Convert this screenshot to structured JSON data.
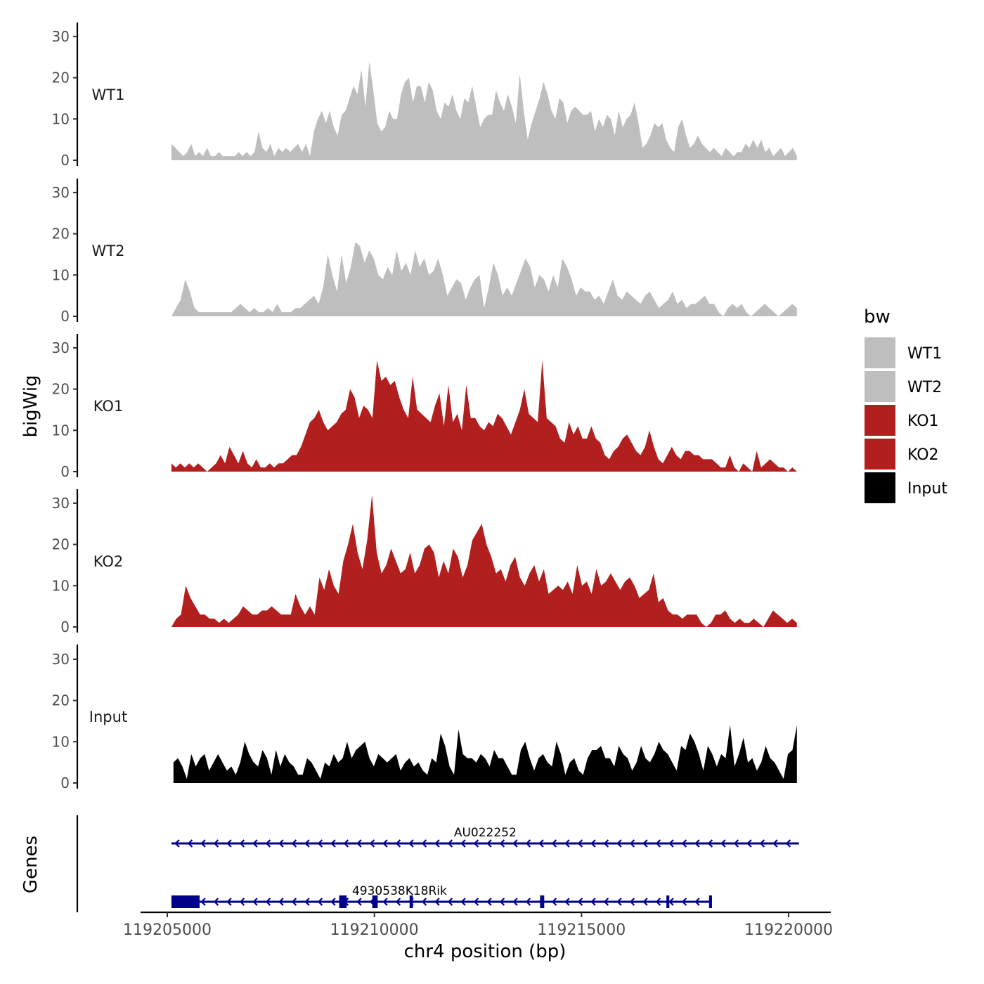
{
  "chart_data": {
    "type": "area",
    "ylabel": "bigWig",
    "xlabel": "chr4 position (bp)",
    "genes_label": "Genes",
    "legend_title": "bw",
    "xlim": [
      119205000,
      119220200
    ],
    "x_ticks": [
      119205000,
      119210000,
      119215000,
      119220000
    ],
    "x_tick_labels": [
      "119205000",
      "119210000",
      "119215000",
      "119220000"
    ],
    "ylim": [
      0,
      32
    ],
    "y_ticks": [
      0,
      10,
      20,
      30
    ],
    "tracks": [
      {
        "name": "WT1",
        "color": "#bebebe",
        "start": 119205100,
        "end": 119220200,
        "values": [
          4,
          3,
          2,
          1,
          2,
          4,
          1,
          2,
          1,
          3,
          1,
          1,
          2,
          1,
          1,
          1,
          1,
          2,
          1,
          2,
          1,
          2,
          7,
          3,
          2,
          4,
          1,
          3,
          2,
          3,
          2,
          3,
          4,
          2,
          4,
          1,
          7,
          10,
          12,
          9,
          12,
          8,
          6,
          11,
          12,
          15,
          18,
          16,
          22,
          13,
          24,
          17,
          9,
          7,
          8,
          12,
          10,
          10,
          16,
          19,
          20,
          14,
          18,
          18,
          14,
          19,
          17,
          12,
          10,
          14,
          13,
          16,
          12,
          10,
          15,
          14,
          18,
          13,
          8,
          10,
          11,
          11,
          17,
          14,
          12,
          16,
          13,
          9,
          21,
          12,
          5,
          9,
          12,
          15,
          19,
          16,
          12,
          10,
          15,
          14,
          9,
          12,
          13,
          12,
          11,
          11,
          12,
          7,
          10,
          8,
          11,
          10,
          6,
          12,
          8,
          10,
          11,
          14,
          9,
          3,
          4,
          6,
          9,
          8,
          9,
          5,
          3,
          2,
          8,
          10,
          6,
          3,
          4,
          6,
          4,
          3,
          2,
          3,
          2,
          1,
          3,
          2,
          1,
          2,
          2,
          4,
          3,
          5,
          3,
          5,
          2,
          3,
          1,
          2,
          3,
          1,
          2,
          3,
          1
        ]
      },
      {
        "name": "WT2",
        "color": "#bebebe",
        "start": 119205100,
        "end": 119220200,
        "values": [
          0,
          2,
          4,
          9,
          6,
          2,
          1,
          1,
          1,
          1,
          1,
          1,
          1,
          1,
          2,
          3,
          2,
          1,
          2,
          1,
          1,
          2,
          1,
          3,
          1,
          1,
          1,
          2,
          2,
          3,
          4,
          5,
          3,
          7,
          15,
          10,
          6,
          15,
          8,
          12,
          18,
          17,
          13,
          16,
          14,
          10,
          9,
          12,
          10,
          16,
          11,
          13,
          10,
          16,
          12,
          14,
          10,
          11,
          14,
          10,
          5,
          7,
          9,
          8,
          4,
          7,
          9,
          10,
          2,
          7,
          13,
          10,
          5,
          7,
          5,
          8,
          11,
          14,
          12,
          7,
          10,
          9,
          6,
          10,
          7,
          14,
          12,
          9,
          5,
          7,
          6,
          6,
          4,
          5,
          3,
          6,
          9,
          5,
          4,
          6,
          5,
          4,
          3,
          5,
          6,
          4,
          2,
          3,
          4,
          6,
          3,
          4,
          2,
          3,
          3,
          4,
          5,
          3,
          3,
          1,
          0,
          2,
          3,
          2,
          3,
          1,
          0,
          1,
          2,
          3,
          2,
          1,
          0,
          1,
          2,
          3,
          2
        ]
      },
      {
        "name": "KO1",
        "color": "#b21f1f",
        "start": 119205100,
        "end": 119220200,
        "values": [
          2,
          1,
          2,
          1,
          2,
          1,
          2,
          1,
          0,
          1,
          2,
          4,
          2,
          6,
          4,
          2,
          5,
          2,
          1,
          3,
          1,
          1,
          2,
          1,
          2,
          2,
          3,
          4,
          4,
          6,
          9,
          12,
          13,
          15,
          12,
          10,
          11,
          12,
          14,
          15,
          20,
          18,
          13,
          16,
          15,
          13,
          27,
          22,
          23,
          21,
          22,
          18,
          15,
          13,
          23,
          15,
          14,
          13,
          12,
          16,
          19,
          11,
          21,
          12,
          14,
          10,
          21,
          13,
          13,
          11,
          10,
          12,
          11,
          14,
          13,
          11,
          9,
          12,
          15,
          20,
          14,
          13,
          12,
          27,
          13,
          12,
          11,
          8,
          7,
          12,
          9,
          11,
          8,
          8,
          11,
          8,
          7,
          4,
          3,
          5,
          6,
          8,
          9,
          7,
          5,
          4,
          6,
          10,
          6,
          3,
          2,
          4,
          6,
          4,
          3,
          5,
          5,
          4,
          4,
          3,
          3,
          3,
          2,
          1,
          1,
          4,
          1,
          0,
          2,
          1,
          0,
          5,
          1,
          2,
          3,
          2,
          1,
          1,
          0,
          1,
          0
        ]
      },
      {
        "name": "KO2",
        "color": "#b21f1f",
        "start": 119205100,
        "end": 119220200,
        "values": [
          0,
          2,
          3,
          10,
          7,
          5,
          3,
          3,
          2,
          2,
          1,
          2,
          1,
          2,
          3,
          5,
          4,
          3,
          3,
          4,
          4,
          5,
          4,
          3,
          3,
          3,
          8,
          5,
          3,
          5,
          3,
          12,
          9,
          14,
          10,
          8,
          16,
          20,
          25,
          18,
          14,
          21,
          32,
          18,
          13,
          15,
          19,
          16,
          13,
          14,
          18,
          13,
          15,
          19,
          20,
          18,
          12,
          16,
          13,
          19,
          17,
          12,
          15,
          21,
          23,
          25,
          20,
          17,
          13,
          14,
          11,
          15,
          17,
          12,
          10,
          13,
          15,
          11,
          14,
          8,
          9,
          10,
          9,
          11,
          8,
          15,
          10,
          11,
          8,
          14,
          10,
          11,
          13,
          11,
          9,
          11,
          12,
          10,
          7,
          8,
          9,
          13,
          6,
          7,
          4,
          3,
          3,
          2,
          3,
          3,
          3,
          1,
          0,
          1,
          3,
          3,
          4,
          2,
          1,
          2,
          1,
          1,
          2,
          1,
          0,
          2,
          4,
          3,
          2,
          1,
          2,
          1
        ]
      },
      {
        "name": "Input",
        "color": "#000000",
        "start": 119205150,
        "end": 119220200,
        "values": [
          5,
          6,
          4,
          1,
          7,
          4,
          6,
          7,
          3,
          5,
          7,
          5,
          3,
          4,
          2,
          5,
          10,
          7,
          5,
          4,
          8,
          6,
          2,
          8,
          4,
          7,
          5,
          4,
          2,
          2,
          6,
          5,
          3,
          1,
          5,
          4,
          7,
          5,
          6,
          10,
          6,
          8,
          9,
          10,
          6,
          4,
          7,
          6,
          5,
          6,
          7,
          3,
          5,
          6,
          4,
          5,
          3,
          2,
          6,
          5,
          12,
          9,
          4,
          2,
          13,
          7,
          6,
          6,
          5,
          7,
          6,
          4,
          8,
          6,
          6,
          4,
          2,
          2,
          8,
          10,
          6,
          3,
          6,
          7,
          5,
          4,
          10,
          7,
          2,
          5,
          6,
          3,
          2,
          6,
          8,
          8,
          9,
          6,
          6,
          4,
          9,
          7,
          6,
          3,
          5,
          9,
          6,
          5,
          7,
          10,
          8,
          7,
          5,
          3,
          9,
          8,
          12,
          10,
          7,
          3,
          9,
          7,
          4,
          7,
          6,
          14,
          4,
          7,
          11,
          5,
          6,
          3,
          5,
          9,
          6,
          5,
          3,
          1,
          7,
          8,
          14
        ]
      }
    ],
    "legend": [
      {
        "label": "WT1",
        "color": "#bebebe"
      },
      {
        "label": "WT2",
        "color": "#bebebe"
      },
      {
        "label": "KO1",
        "color": "#b21f1f"
      },
      {
        "label": "KO2",
        "color": "#b21f1f"
      },
      {
        "label": "Input",
        "color": "#000000"
      }
    ],
    "genes": [
      {
        "name": "AU022252",
        "strand": "-",
        "start": 119205100,
        "end": 119220250,
        "color": "#00008b",
        "exons": []
      },
      {
        "name": "4930538K18Rik",
        "strand": "-",
        "start": 119205100,
        "end": 119218150,
        "color": "#00008b",
        "exons": [
          [
            119205100,
            119205780
          ],
          [
            119209150,
            119209330
          ],
          [
            119209950,
            119210080
          ],
          [
            119210850,
            119210930
          ],
          [
            119214000,
            119214100
          ],
          [
            119217050,
            119217120
          ],
          [
            119218080,
            119218150
          ]
        ]
      }
    ]
  }
}
